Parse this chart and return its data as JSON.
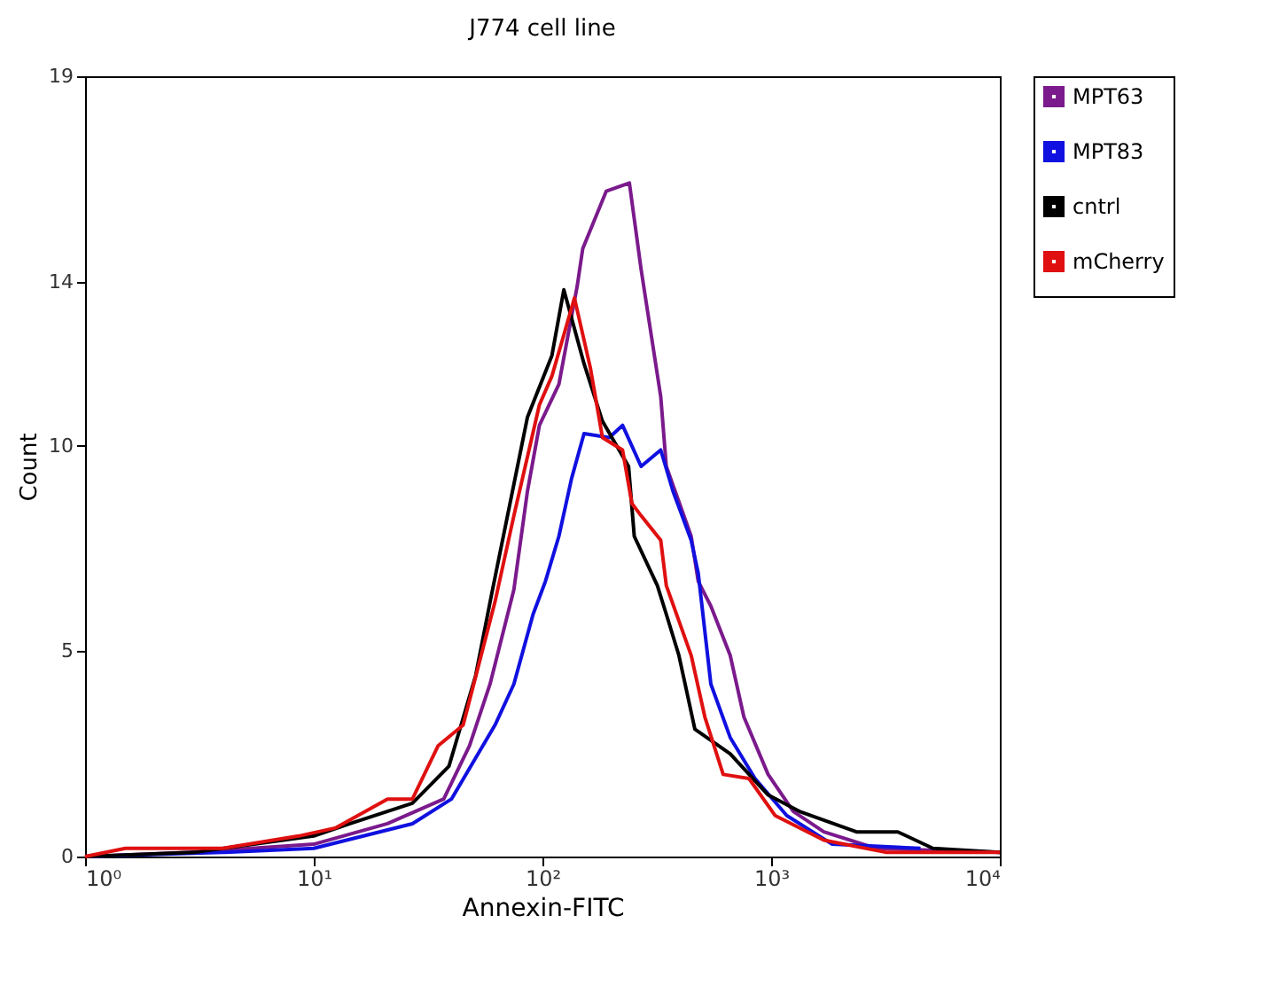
{
  "chart_data": {
    "type": "line",
    "title": "J774 cell line",
    "xlabel": "Annexin-FITC",
    "ylabel": "Count",
    "log": "x",
    "grid": false,
    "legend": "top right",
    "xlim": [
      1,
      10000
    ],
    "xticks": [
      {
        "value": 1,
        "label": "10⁰"
      },
      {
        "value": 10,
        "label": "10¹"
      },
      {
        "value": 100,
        "label": "10²"
      },
      {
        "value": 1000,
        "label": "10³"
      },
      {
        "value": 10000,
        "label": "10⁴"
      }
    ],
    "ylim": [
      0,
      19
    ],
    "yticks": [
      0,
      5,
      10,
      14,
      19
    ],
    "series": [
      {
        "name": "MPT63",
        "color": "#7b1a8c",
        "x": [
          1,
          2.9,
          10,
          21,
          37,
          48,
          59,
          75,
          86,
          97,
          118,
          142,
          150,
          190,
          240,
          270,
          329,
          348,
          447,
          480,
          545,
          662,
          760,
          970,
          1250,
          1700,
          2870,
          10000
        ],
        "values": [
          0,
          0.1,
          0.3,
          0.8,
          1.4,
          2.7,
          4.2,
          6.5,
          8.9,
          10.5,
          11.5,
          13.9,
          14.8,
          16.2,
          16.4,
          14.3,
          11.2,
          9.5,
          7.8,
          6.7,
          6.1,
          4.9,
          3.4,
          2.0,
          1.1,
          0.6,
          0.2,
          0.1
        ]
      },
      {
        "name": "MPT83",
        "color": "#1010e0",
        "x": [
          1,
          4,
          10,
          27,
          40,
          62,
          75,
          91,
          103,
          118,
          134,
          152,
          196,
          224,
          270,
          329,
          372,
          447,
          480,
          545,
          662,
          850,
          1170,
          1850,
          4500
        ],
        "values": [
          0,
          0.1,
          0.2,
          0.8,
          1.4,
          3.2,
          4.2,
          5.9,
          6.7,
          7.8,
          9.2,
          10.3,
          10.2,
          10.5,
          9.5,
          9.9,
          8.9,
          7.7,
          6.9,
          4.2,
          2.9,
          1.9,
          1.0,
          0.3,
          0.2
        ]
      },
      {
        "name": "cntrl",
        "color": "#000000",
        "x": [
          1,
          3,
          10,
          14.4,
          27,
          39,
          51,
          60,
          86,
          110,
          124,
          152,
          183,
          238,
          252,
          318,
          348,
          395,
          464,
          662,
          970,
          1330,
          2360,
          3580,
          5100,
          10000
        ],
        "values": [
          0,
          0.1,
          0.5,
          0.8,
          1.3,
          2.2,
          4.4,
          6.4,
          10.7,
          12.2,
          13.8,
          12.0,
          10.6,
          9.5,
          7.8,
          6.6,
          5.9,
          4.9,
          3.1,
          2.5,
          1.5,
          1.1,
          0.6,
          0.6,
          0.2,
          0.1
        ]
      },
      {
        "name": "mCherry",
        "color": "#e01010",
        "x": [
          1,
          1.5,
          4,
          8.6,
          12.5,
          21,
          27,
          35,
          45,
          62,
          75,
          97,
          110,
          124,
          138,
          162,
          183,
          224,
          246,
          270,
          329,
          348,
          447,
          513,
          617,
          800,
          1040,
          1700,
          3200,
          10000
        ],
        "values": [
          0,
          0.2,
          0.2,
          0.5,
          0.7,
          1.4,
          1.4,
          2.7,
          3.2,
          6.2,
          8.3,
          11.0,
          11.7,
          12.7,
          13.6,
          11.9,
          10.2,
          9.9,
          8.6,
          8.3,
          7.7,
          6.6,
          4.9,
          3.4,
          2.0,
          1.9,
          1.0,
          0.4,
          0.1,
          0.1
        ]
      }
    ]
  }
}
